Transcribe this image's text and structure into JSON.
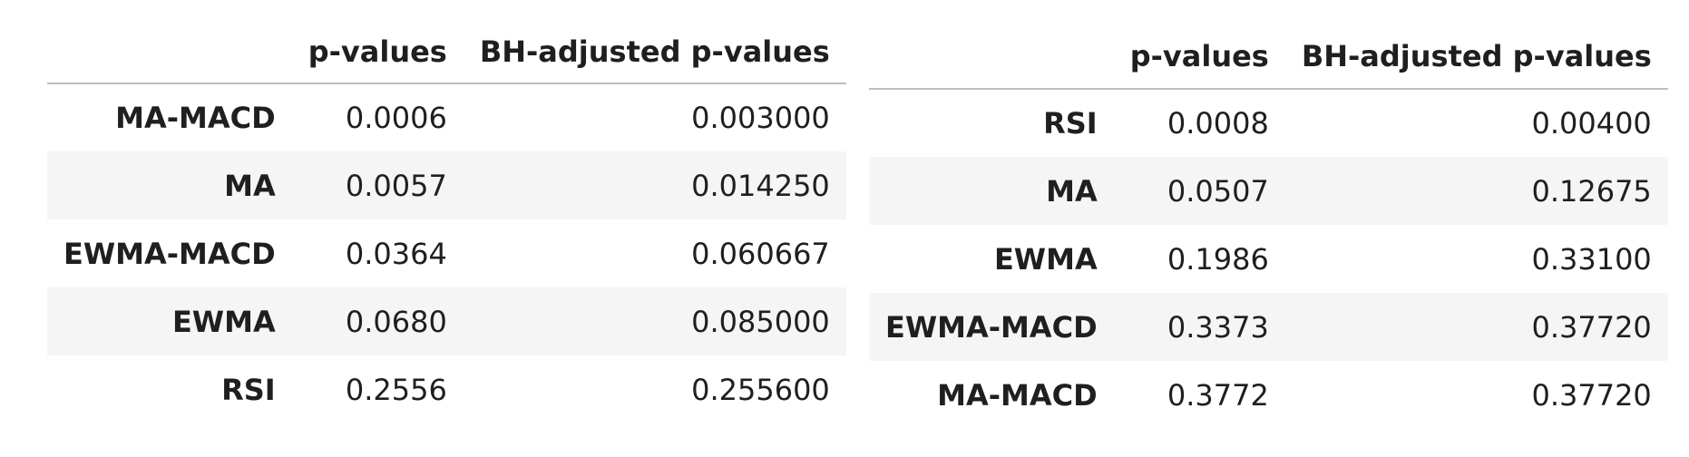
{
  "tables": [
    {
      "columns": [
        "",
        "p-values",
        "BH-adjusted p-values"
      ],
      "rows": [
        {
          "label": "MA-MACD",
          "p_value": "0.0006",
          "bh_adjusted": "0.003000"
        },
        {
          "label": "MA",
          "p_value": "0.0057",
          "bh_adjusted": "0.014250"
        },
        {
          "label": "EWMA-MACD",
          "p_value": "0.0364",
          "bh_adjusted": "0.060667"
        },
        {
          "label": "EWMA",
          "p_value": "0.0680",
          "bh_adjusted": "0.085000"
        },
        {
          "label": "RSI",
          "p_value": "0.2556",
          "bh_adjusted": "0.255600"
        }
      ]
    },
    {
      "columns": [
        "",
        "p-values",
        "BH-adjusted p-values"
      ],
      "rows": [
        {
          "label": "RSI",
          "p_value": "0.0008",
          "bh_adjusted": "0.00400"
        },
        {
          "label": "MA",
          "p_value": "0.0507",
          "bh_adjusted": "0.12675"
        },
        {
          "label": "EWMA",
          "p_value": "0.1986",
          "bh_adjusted": "0.33100"
        },
        {
          "label": "EWMA-MACD",
          "p_value": "0.3373",
          "bh_adjusted": "0.37720"
        },
        {
          "label": "MA-MACD",
          "p_value": "0.3772",
          "bh_adjusted": "0.37720"
        }
      ]
    }
  ],
  "colors": {
    "stripe": "#f5f5f5",
    "header_rule": "#bdbdbd",
    "text": "#1f1f1f"
  }
}
